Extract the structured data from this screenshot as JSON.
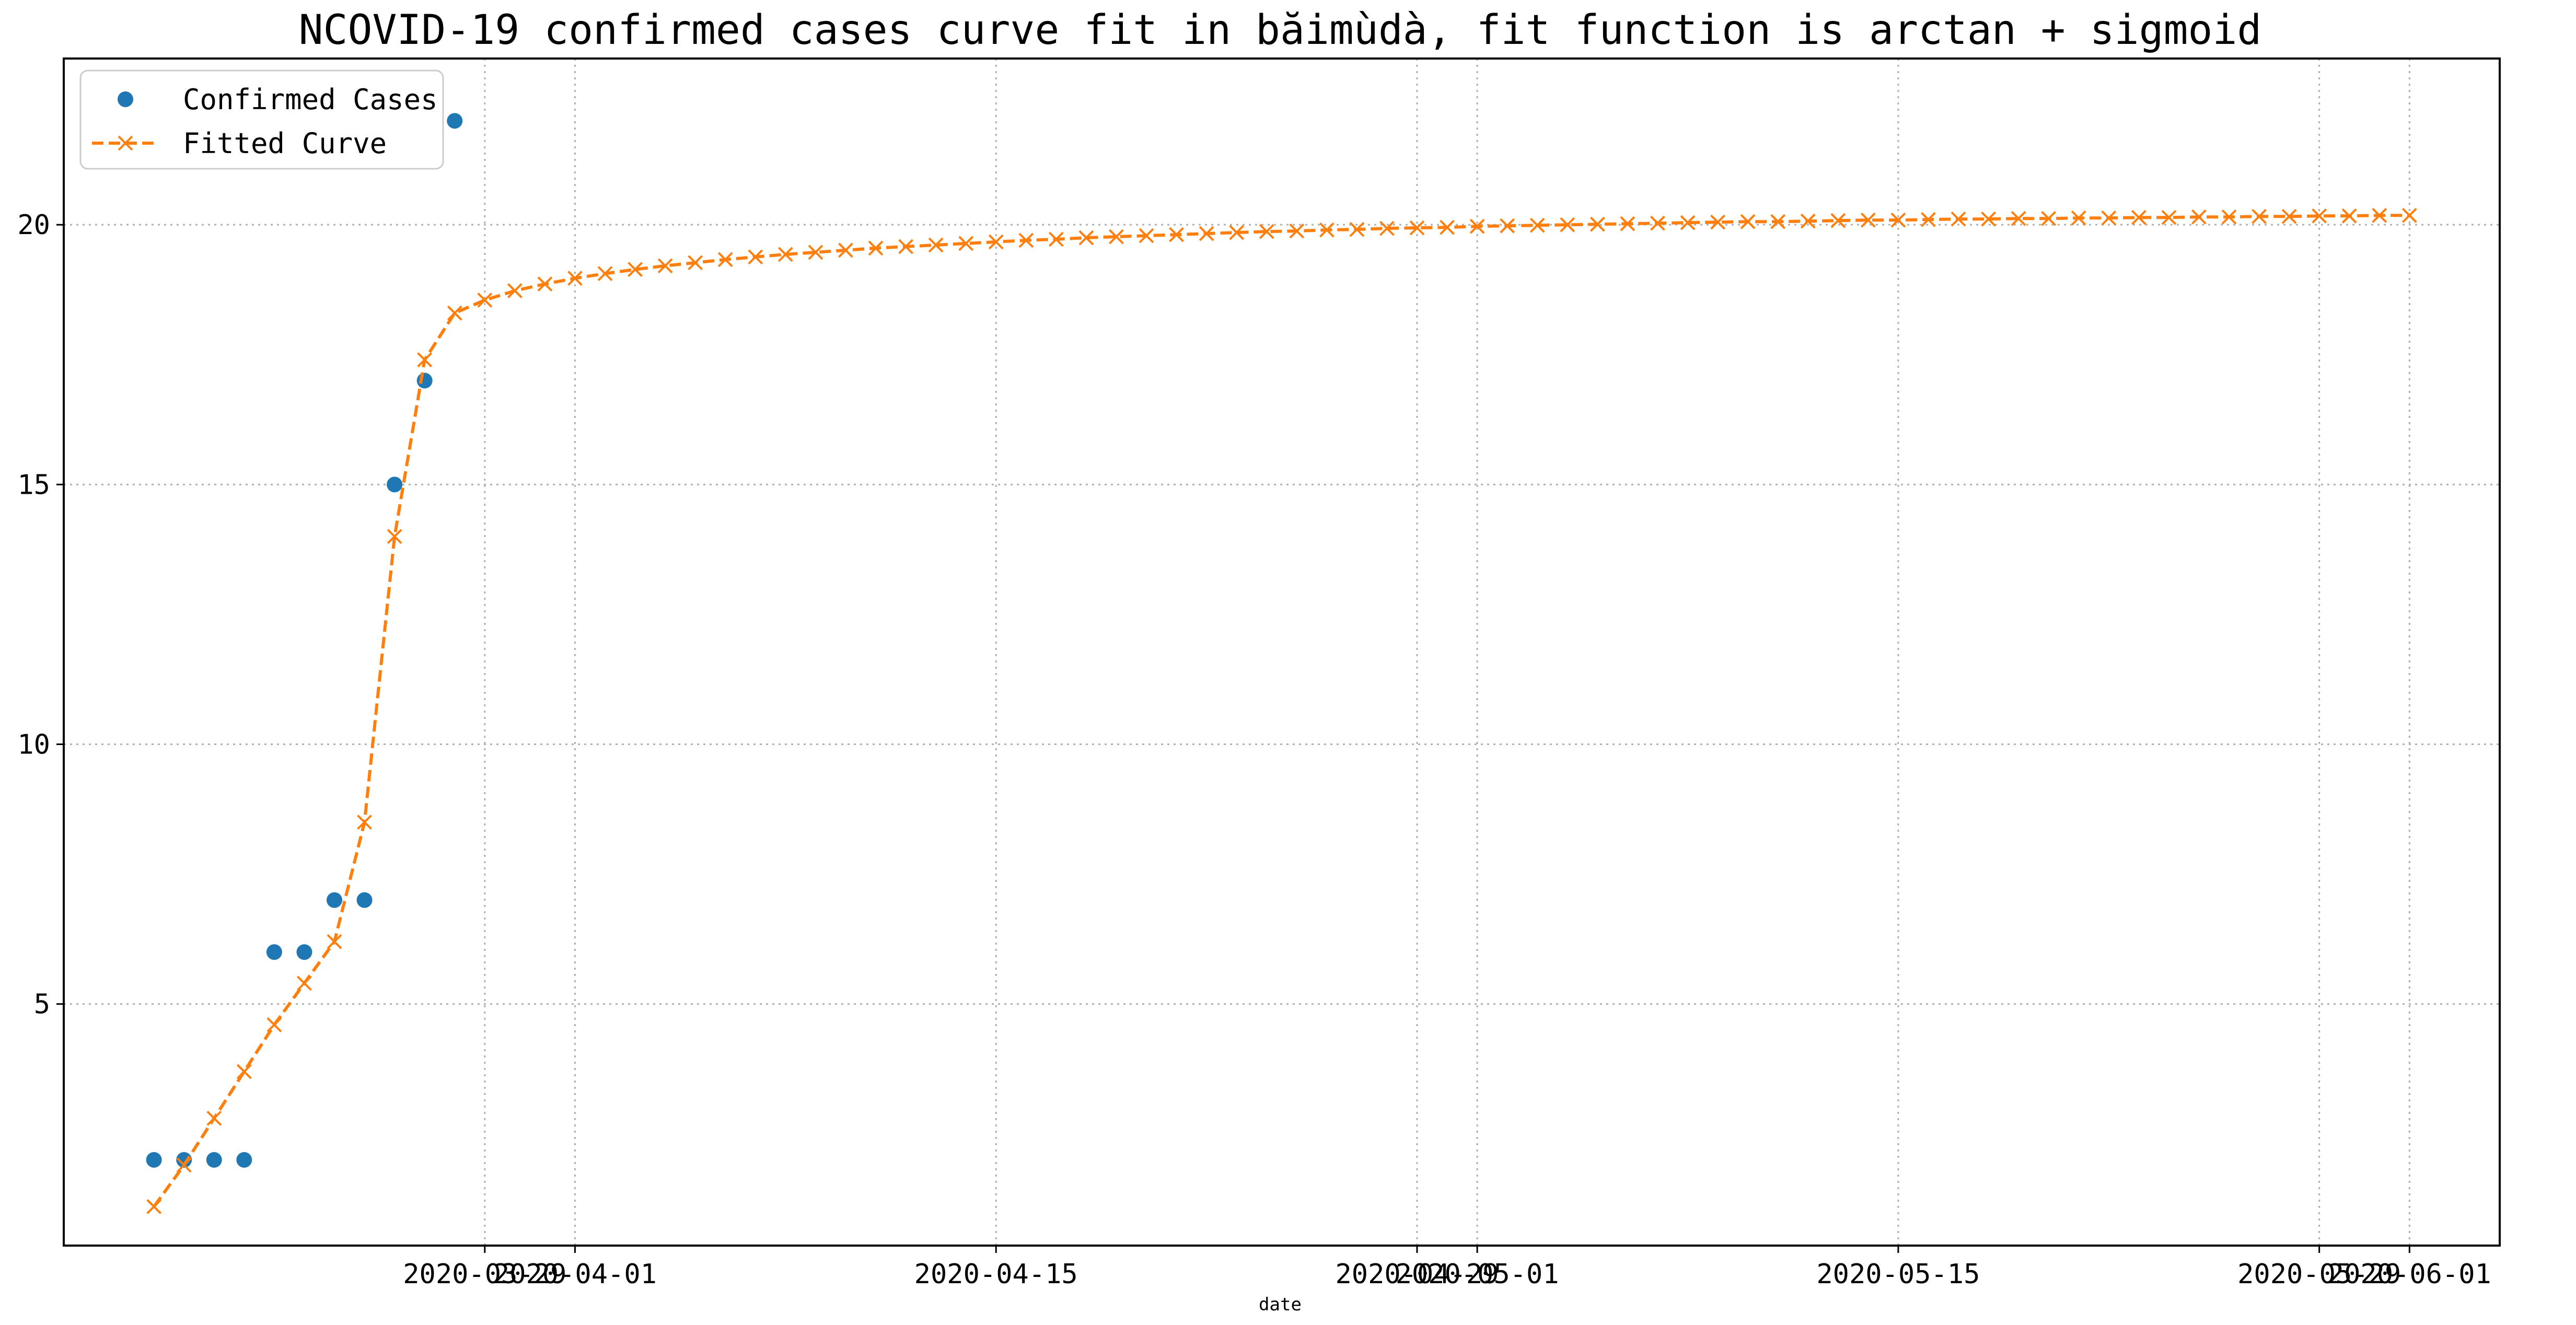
{
  "chart_data": {
    "type": "line",
    "title": "NCOVID-19 confirmed cases curve fit in băimùdà, fit function is arctan + sigmoid",
    "xlabel": "date",
    "ylabel": "",
    "x_start": "2020-03-18",
    "x_axis_range": [
      "2020-03-15",
      "2020-06-04"
    ],
    "y_axis_range": [
      0.35,
      23.2
    ],
    "grid": true,
    "legend_position": "top-left",
    "xticks": [
      "2020-03-29",
      "2020-04-01",
      "2020-04-15",
      "2020-04-29",
      "2020-05-01",
      "2020-05-15",
      "2020-05-29",
      "2020-06-01"
    ],
    "yticks": [
      5,
      10,
      15,
      20
    ],
    "series": [
      {
        "name": "Confirmed Cases",
        "style": "markers",
        "color": "#1f77b4",
        "marker": "circle",
        "dates": [
          "2020-03-18",
          "2020-03-19",
          "2020-03-20",
          "2020-03-21",
          "2020-03-22",
          "2020-03-23",
          "2020-03-24",
          "2020-03-25",
          "2020-03-26",
          "2020-03-27",
          "2020-03-28"
        ],
        "values": [
          2,
          2,
          2,
          2,
          6,
          6,
          7,
          7,
          15,
          17,
          22
        ]
      },
      {
        "name": "Fitted Curve",
        "style": "dashed-line",
        "color": "#ff7f0e",
        "marker": "x",
        "dates": [
          "2020-03-18",
          "2020-03-19",
          "2020-03-20",
          "2020-03-21",
          "2020-03-22",
          "2020-03-23",
          "2020-03-24",
          "2020-03-25",
          "2020-03-26",
          "2020-03-27",
          "2020-03-28",
          "2020-03-29",
          "2020-03-30",
          "2020-03-31",
          "2020-04-01",
          "2020-04-02",
          "2020-04-03",
          "2020-04-04",
          "2020-04-05",
          "2020-04-06",
          "2020-04-07",
          "2020-04-08",
          "2020-04-09",
          "2020-04-10",
          "2020-04-11",
          "2020-04-12",
          "2020-04-13",
          "2020-04-14",
          "2020-04-15",
          "2020-04-16",
          "2020-04-17",
          "2020-04-18",
          "2020-04-19",
          "2020-04-20",
          "2020-04-21",
          "2020-04-22",
          "2020-04-23",
          "2020-04-24",
          "2020-04-25",
          "2020-04-26",
          "2020-04-27",
          "2020-04-28",
          "2020-04-29",
          "2020-04-30",
          "2020-05-01",
          "2020-05-02",
          "2020-05-03",
          "2020-05-04",
          "2020-05-05",
          "2020-05-06",
          "2020-05-07",
          "2020-05-08",
          "2020-05-09",
          "2020-05-10",
          "2020-05-11",
          "2020-05-12",
          "2020-05-13",
          "2020-05-14",
          "2020-05-15",
          "2020-05-16",
          "2020-05-17",
          "2020-05-18",
          "2020-05-19",
          "2020-05-20",
          "2020-05-21",
          "2020-05-22",
          "2020-05-23",
          "2020-05-24",
          "2020-05-25",
          "2020-05-26",
          "2020-05-27",
          "2020-05-28",
          "2020-05-29",
          "2020-05-30",
          "2020-05-31",
          "2020-06-01"
        ],
        "values": [
          1.1,
          1.9,
          2.8,
          3.7,
          4.6,
          5.4,
          6.2,
          8.5,
          14.0,
          17.4,
          18.3,
          18.55,
          18.73,
          18.86,
          18.97,
          19.06,
          19.14,
          19.21,
          19.27,
          19.33,
          19.38,
          19.43,
          19.47,
          19.51,
          19.55,
          19.58,
          19.61,
          19.64,
          19.67,
          19.7,
          19.72,
          19.75,
          19.77,
          19.79,
          19.81,
          19.83,
          19.85,
          19.87,
          19.88,
          19.9,
          19.91,
          19.93,
          19.94,
          19.95,
          19.97,
          19.98,
          19.99,
          20.0,
          20.01,
          20.02,
          20.03,
          20.04,
          20.05,
          20.06,
          20.06,
          20.07,
          20.08,
          20.09,
          20.09,
          20.1,
          20.11,
          20.11,
          20.12,
          20.12,
          20.13,
          20.13,
          20.14,
          20.14,
          20.15,
          20.15,
          20.16,
          20.16,
          20.17,
          20.17,
          20.18,
          20.18
        ]
      }
    ]
  }
}
